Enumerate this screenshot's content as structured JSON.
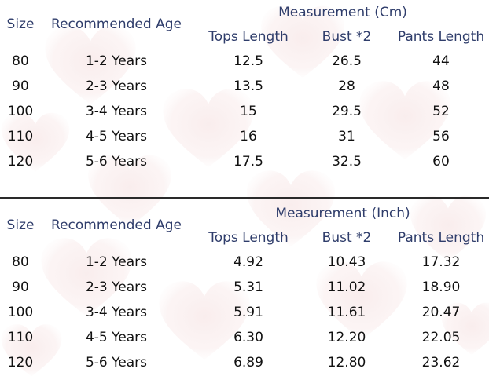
{
  "colors": {
    "header_text": "#2f3d6b",
    "cell_text": "#111111",
    "divider": "#2a2a2a",
    "heart_fill": "#f7e4e4"
  },
  "table_cm": {
    "title": "Measurement (Cm)",
    "headers": {
      "size": "Size",
      "age": "Recommended Age",
      "tops": "Tops Length",
      "bust": "Bust *2",
      "pants": "Pants Length"
    },
    "rows": [
      {
        "size": "80",
        "age": "1-2 Years",
        "tops": "12.5",
        "bust": "26.5",
        "pants": "44"
      },
      {
        "size": "90",
        "age": "2-3 Years",
        "tops": "13.5",
        "bust": "28",
        "pants": "48"
      },
      {
        "size": "100",
        "age": "3-4 Years",
        "tops": "15",
        "bust": "29.5",
        "pants": "52"
      },
      {
        "size": "110",
        "age": "4-5 Years",
        "tops": "16",
        "bust": "31",
        "pants": "56"
      },
      {
        "size": "120",
        "age": "5-6 Years",
        "tops": "17.5",
        "bust": "32.5",
        "pants": "60"
      }
    ]
  },
  "table_in": {
    "title": "Measurement (Inch)",
    "headers": {
      "size": "Size",
      "age": "Recommended Age",
      "tops": "Tops Length",
      "bust": "Bust *2",
      "pants": "Pants Length"
    },
    "rows": [
      {
        "size": "80",
        "age": "1-2 Years",
        "tops": "4.92",
        "bust": "10.43",
        "pants": "17.32"
      },
      {
        "size": "90",
        "age": "2-3 Years",
        "tops": "5.31",
        "bust": "11.02",
        "pants": "18.90"
      },
      {
        "size": "100",
        "age": "3-4 Years",
        "tops": "5.91",
        "bust": "11.61",
        "pants": "20.47"
      },
      {
        "size": "110",
        "age": "4-5 Years",
        "tops": "6.30",
        "bust": "12.20",
        "pants": "22.05"
      },
      {
        "size": "120",
        "age": "5-6 Years",
        "tops": "6.89",
        "bust": "12.80",
        "pants": "23.62"
      }
    ]
  }
}
